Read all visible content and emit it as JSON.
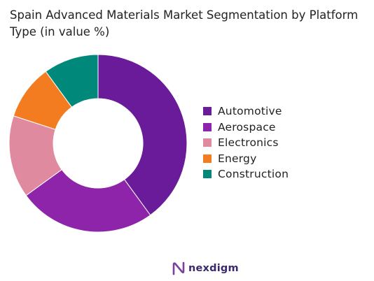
{
  "chart_data": {
    "type": "pie",
    "title": "Spain Advanced Materials Market Segmentation by Platform Type (in value %)",
    "categories": [
      "Automotive",
      "Aerospace",
      "Electronics",
      "Energy",
      "Construction"
    ],
    "values": [
      40,
      25,
      15,
      10,
      10
    ],
    "colors": [
      "#6a1b9a",
      "#8e24aa",
      "#e08aa0",
      "#f47c20",
      "#00897b"
    ],
    "donut": true,
    "legend_position": "right"
  },
  "brand": {
    "name": "nexdigm",
    "logo_icon": "nexdigm-logo-icon"
  }
}
